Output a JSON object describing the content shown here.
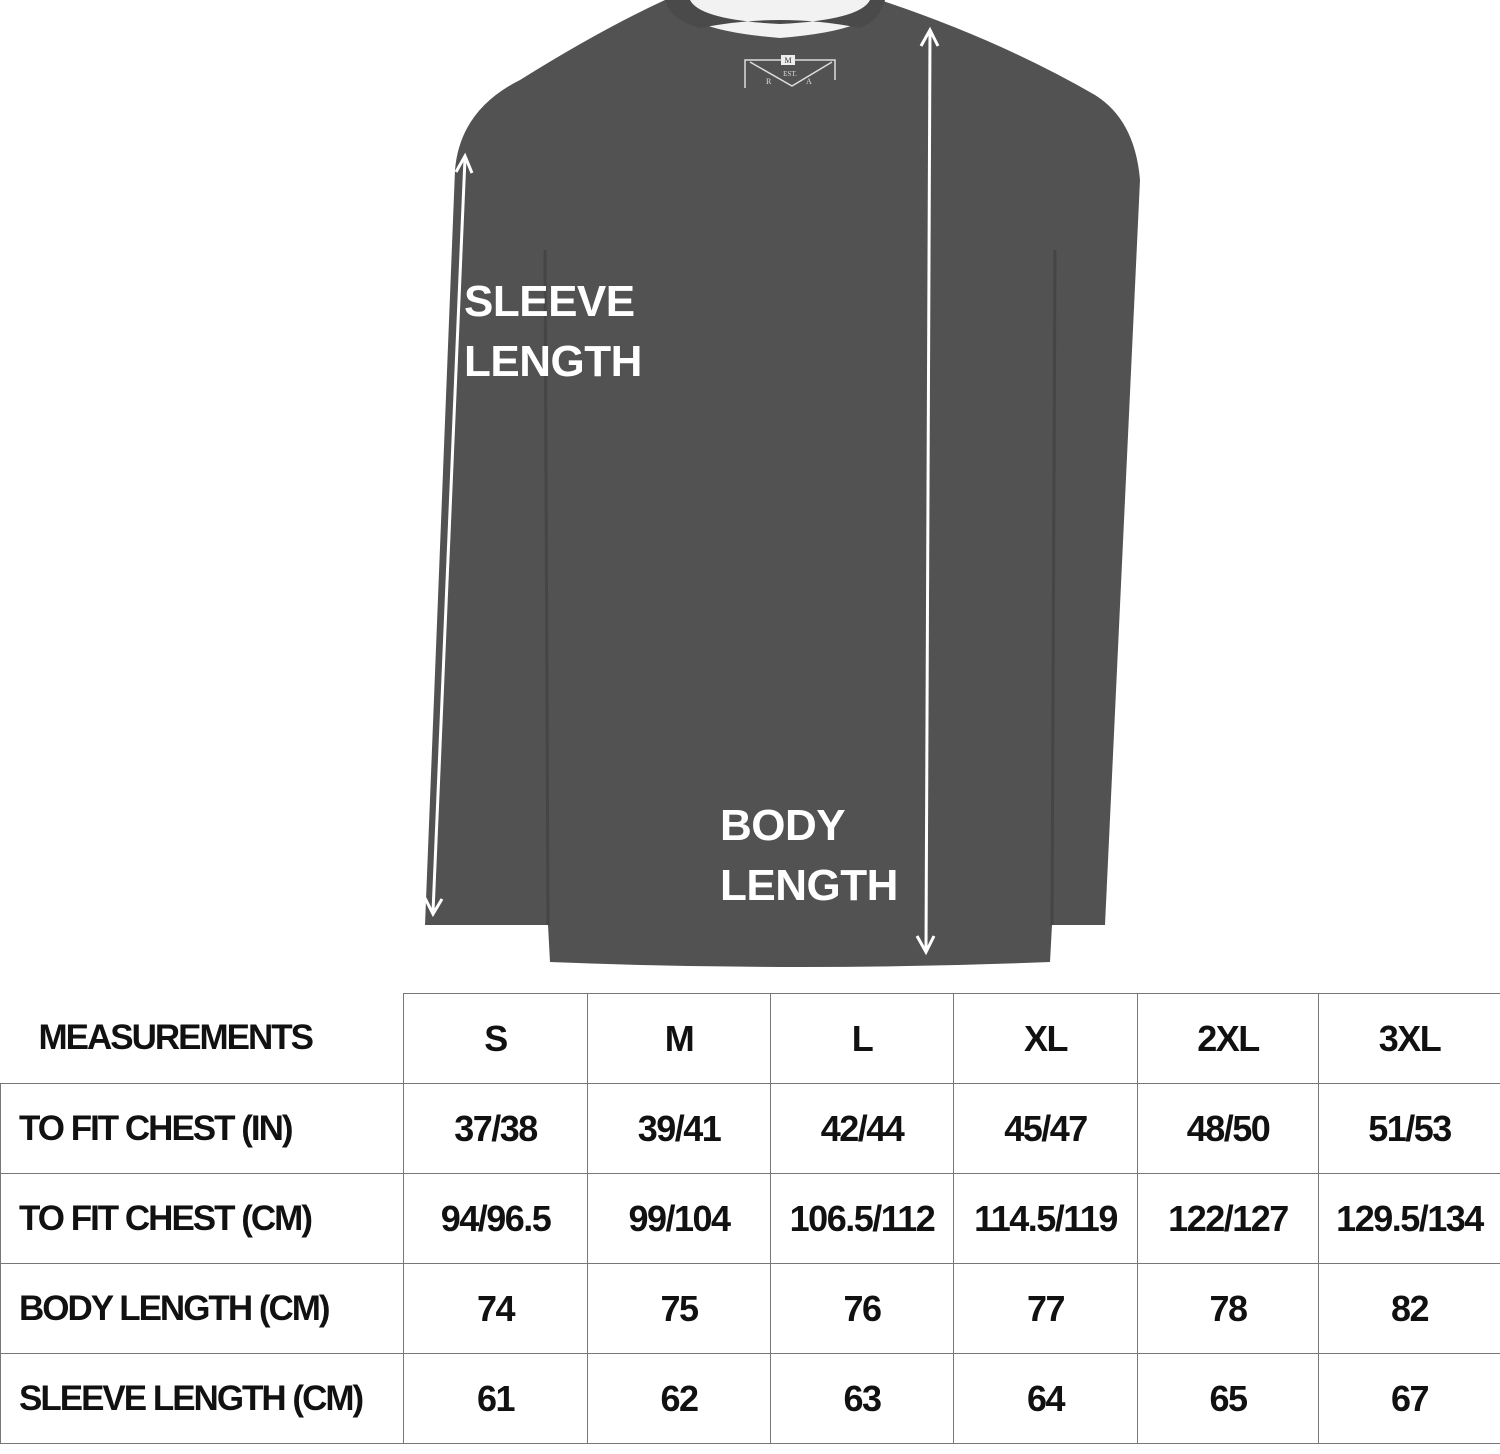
{
  "garment": {
    "colors": {
      "fabric": "#505050",
      "collar_band": "#f2f2f2",
      "arrow": "#ffffff"
    },
    "neck_label": {
      "size": "M",
      "text": "EST.",
      "letters": [
        "R",
        "A"
      ]
    },
    "annotations": {
      "sleeve": [
        "SLEEVE",
        "LENGTH"
      ],
      "body": [
        "BODY",
        "LENGTH"
      ]
    }
  },
  "size_table": {
    "header": "MEASUREMENTS",
    "sizes": [
      "S",
      "M",
      "L",
      "XL",
      "2XL",
      "3XL"
    ],
    "rows": [
      {
        "label": "TO FIT CHEST (IN)",
        "values": [
          "37/38",
          "39/41",
          "42/44",
          "45/47",
          "48/50",
          "51/53"
        ]
      },
      {
        "label": "TO FIT CHEST (CM)",
        "values": [
          "94/96.5",
          "99/104",
          "106.5/112",
          "114.5/119",
          "122/127",
          "129.5/134"
        ]
      },
      {
        "label": "BODY LENGTH (CM)",
        "values": [
          "74",
          "75",
          "76",
          "77",
          "78",
          "82"
        ]
      },
      {
        "label": "SLEEVE LENGTH (CM)",
        "values": [
          "61",
          "62",
          "63",
          "64",
          "65",
          "67"
        ]
      }
    ]
  }
}
